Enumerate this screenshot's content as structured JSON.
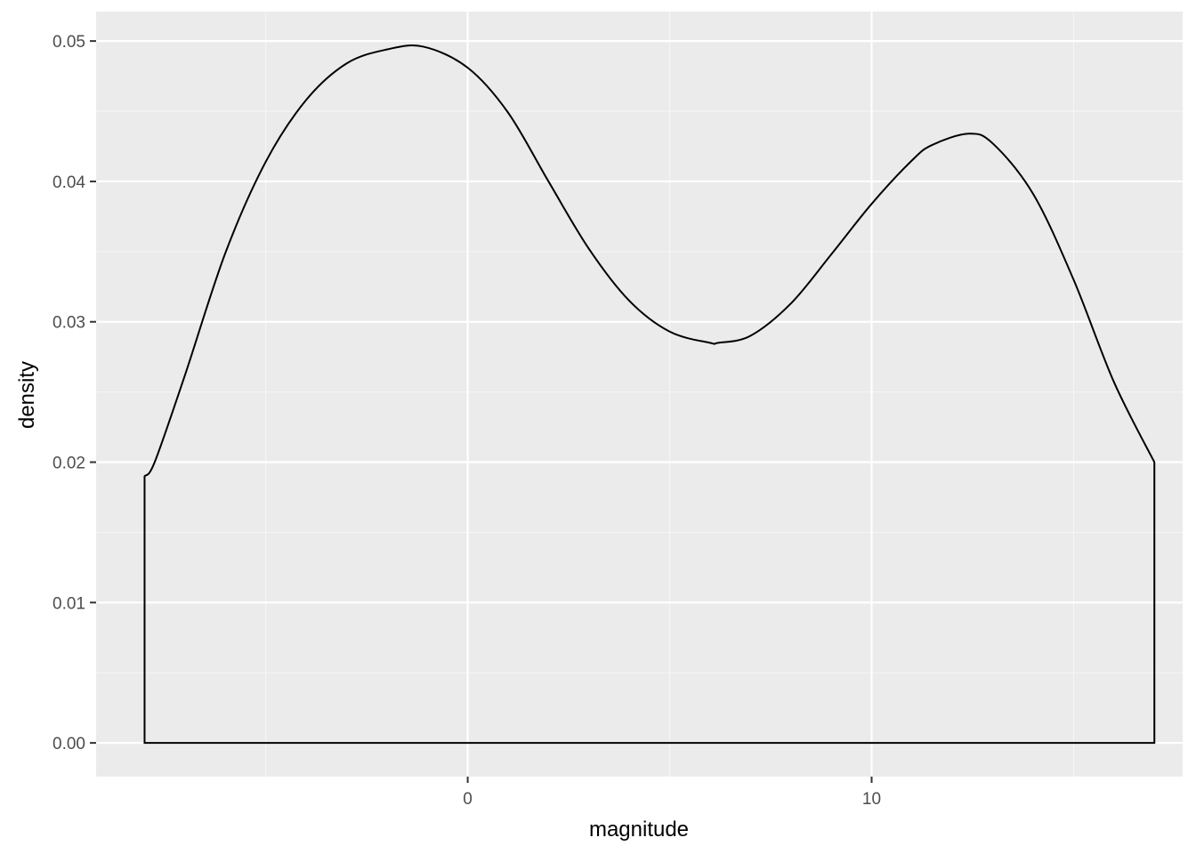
{
  "chart_data": {
    "type": "area",
    "title": "",
    "xlabel": "magnitude",
    "ylabel": "density",
    "xlim": [
      -9.2,
      17.7
    ],
    "ylim": [
      -0.0024,
      0.0521
    ],
    "x_ticks": [
      0,
      10
    ],
    "x_tick_labels": [
      "0",
      "10"
    ],
    "y_ticks": [
      0.0,
      0.01,
      0.02,
      0.03,
      0.04,
      0.05
    ],
    "y_tick_labels": [
      "0.00",
      "0.01",
      "0.02",
      "0.03",
      "0.04",
      "0.05"
    ],
    "grid": true,
    "legend": "none",
    "series": [
      {
        "x": [
          -8.0,
          -7.75,
          -7.0,
          -6.0,
          -5.0,
          -4.0,
          -3.0,
          -2.0,
          -1.1,
          0.0,
          1.0,
          2.0,
          3.0,
          4.0,
          5.0,
          6.0,
          6.2,
          7.0,
          8.0,
          9.0,
          10.0,
          11.0,
          11.5,
          12.4,
          13.0,
          14.0,
          15.0,
          16.0,
          17.0
        ],
        "y": [
          0.019,
          0.02,
          0.0262,
          0.0349,
          0.0414,
          0.0458,
          0.0484,
          0.0494,
          0.0496,
          0.0481,
          0.0449,
          0.04,
          0.0352,
          0.0315,
          0.0293,
          0.0285,
          0.0285,
          0.029,
          0.0313,
          0.0348,
          0.0384,
          0.0415,
          0.0426,
          0.0434,
          0.0427,
          0.0391,
          0.033,
          0.0257,
          0.02
        ]
      }
    ]
  },
  "colors": {
    "panel_background": "#ebebeb",
    "grid_major": "#ffffff",
    "grid_minor": "#f5f5f5",
    "line": "#000000",
    "tick_text": "#4d4d4d",
    "axis_title": "#000000"
  }
}
